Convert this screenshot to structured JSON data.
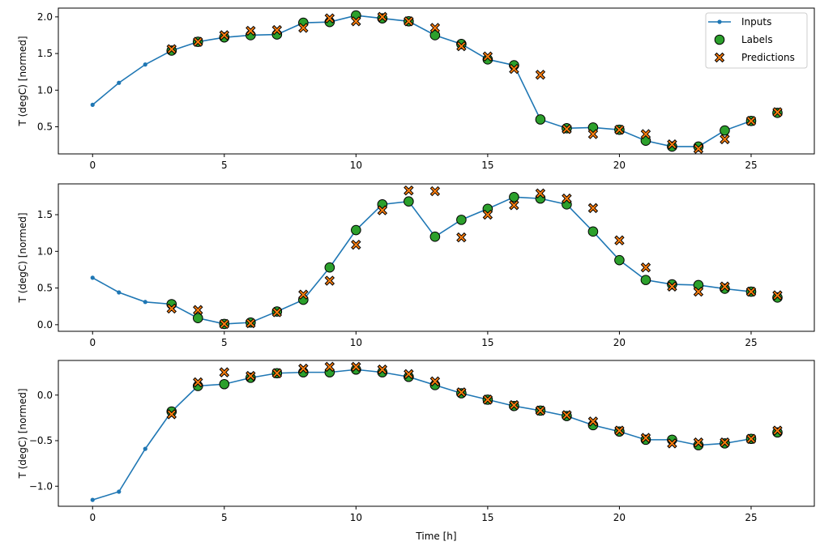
{
  "chart_data": [
    {
      "type": "line",
      "ylabel": "T (degC) [normed]",
      "xlabel": "",
      "xlim": [
        -1.3,
        27.4
      ],
      "ylim": [
        0.13,
        2.12
      ],
      "yticks": [
        0.5,
        1.0,
        1.5,
        2.0
      ],
      "xticks": [
        0,
        5,
        10,
        15,
        20,
        25
      ],
      "legend": {
        "placement": "top-right",
        "entries": [
          "Inputs",
          "Labels",
          "Predictions"
        ]
      },
      "inputs": {
        "x": [
          0,
          1,
          2,
          3,
          4,
          5,
          6,
          7,
          8,
          9,
          10,
          11,
          12,
          13,
          14,
          15,
          16,
          17,
          18,
          19,
          20,
          21,
          22,
          23,
          24,
          25
        ],
        "y": [
          0.8,
          1.1,
          1.35,
          1.54,
          1.66,
          1.72,
          1.75,
          1.76,
          1.92,
          1.93,
          2.02,
          1.98,
          1.94,
          1.75,
          1.63,
          1.42,
          1.34,
          0.6,
          0.48,
          0.49,
          0.46,
          0.31,
          0.23,
          0.23,
          0.45,
          0.58
        ]
      },
      "labels": {
        "x": [
          3,
          4,
          5,
          6,
          7,
          8,
          9,
          10,
          11,
          12,
          13,
          14,
          15,
          16,
          17,
          18,
          19,
          20,
          21,
          22,
          23,
          24,
          25,
          26
        ],
        "y": [
          1.54,
          1.66,
          1.72,
          1.75,
          1.76,
          1.92,
          1.93,
          2.02,
          1.98,
          1.94,
          1.75,
          1.63,
          1.42,
          1.34,
          0.6,
          0.48,
          0.49,
          0.46,
          0.31,
          0.23,
          0.23,
          0.45,
          0.58,
          0.69
        ]
      },
      "predictions": {
        "x": [
          3,
          4,
          5,
          6,
          7,
          8,
          9,
          10,
          11,
          12,
          13,
          14,
          15,
          16,
          17,
          18,
          19,
          20,
          21,
          22,
          23,
          24,
          25,
          26
        ],
        "y": [
          1.56,
          1.66,
          1.75,
          1.81,
          1.82,
          1.85,
          1.98,
          1.94,
          2.0,
          1.94,
          1.85,
          1.6,
          1.46,
          1.29,
          1.21,
          0.47,
          0.4,
          0.46,
          0.4,
          0.26,
          0.2,
          0.33,
          0.58,
          0.7
        ]
      }
    },
    {
      "type": "line",
      "ylabel": "T (degC) [normed]",
      "xlabel": "",
      "xlim": [
        -1.3,
        27.4
      ],
      "ylim": [
        -0.09,
        1.92
      ],
      "yticks": [
        0.0,
        0.5,
        1.0,
        1.5
      ],
      "xticks": [
        0,
        5,
        10,
        15,
        20,
        25
      ],
      "inputs": {
        "x": [
          0,
          1,
          2,
          3,
          4,
          5,
          6,
          7,
          8,
          9,
          10,
          11,
          12,
          13,
          14,
          15,
          16,
          17,
          18,
          19,
          20,
          21,
          22,
          23,
          24,
          25
        ],
        "y": [
          0.64,
          0.44,
          0.31,
          0.28,
          0.09,
          0.01,
          0.03,
          0.18,
          0.34,
          0.78,
          1.29,
          1.64,
          1.68,
          1.2,
          1.43,
          1.58,
          1.74,
          1.72,
          1.64,
          1.27,
          0.88,
          0.61,
          0.55,
          0.54,
          0.49,
          0.45
        ]
      },
      "labels": {
        "x": [
          3,
          4,
          5,
          6,
          7,
          8,
          9,
          10,
          11,
          12,
          13,
          14,
          15,
          16,
          17,
          18,
          19,
          20,
          21,
          22,
          23,
          24,
          25,
          26
        ],
        "y": [
          0.28,
          0.09,
          0.01,
          0.03,
          0.18,
          0.34,
          0.78,
          1.29,
          1.64,
          1.68,
          1.2,
          1.43,
          1.58,
          1.74,
          1.72,
          1.64,
          1.27,
          0.88,
          0.61,
          0.55,
          0.54,
          0.49,
          0.45,
          0.37
        ]
      },
      "predictions": {
        "x": [
          3,
          4,
          5,
          6,
          7,
          8,
          9,
          10,
          11,
          12,
          13,
          14,
          15,
          16,
          17,
          18,
          19,
          20,
          21,
          22,
          23,
          24,
          25,
          26
        ],
        "y": [
          0.22,
          0.2,
          0.01,
          0.02,
          0.17,
          0.41,
          0.6,
          1.09,
          1.56,
          1.83,
          1.82,
          1.19,
          1.5,
          1.63,
          1.79,
          1.72,
          1.59,
          1.15,
          0.78,
          0.52,
          0.45,
          0.52,
          0.45,
          0.4
        ]
      }
    },
    {
      "type": "line",
      "ylabel": "T (degC) [normed]",
      "xlabel": "Time [h]",
      "xlim": [
        -1.3,
        27.4
      ],
      "ylim": [
        -1.22,
        0.38
      ],
      "yticks": [
        -1.0,
        -0.5,
        0.0
      ],
      "xticks": [
        0,
        5,
        10,
        15,
        20,
        25
      ],
      "inputs": {
        "x": [
          0,
          1,
          2,
          3,
          4,
          5,
          6,
          7,
          8,
          9,
          10,
          11,
          12,
          13,
          14,
          15,
          16,
          17,
          18,
          19,
          20,
          21,
          22,
          23,
          24,
          25
        ],
        "y": [
          -1.15,
          -1.06,
          -0.59,
          -0.18,
          0.1,
          0.12,
          0.19,
          0.24,
          0.25,
          0.25,
          0.28,
          0.25,
          0.2,
          0.11,
          0.02,
          -0.05,
          -0.12,
          -0.17,
          -0.23,
          -0.33,
          -0.4,
          -0.49,
          -0.49,
          -0.55,
          -0.53,
          -0.48
        ]
      },
      "labels": {
        "x": [
          3,
          4,
          5,
          6,
          7,
          8,
          9,
          10,
          11,
          12,
          13,
          14,
          15,
          16,
          17,
          18,
          19,
          20,
          21,
          22,
          23,
          24,
          25,
          26
        ],
        "y": [
          -0.18,
          0.1,
          0.12,
          0.19,
          0.24,
          0.25,
          0.25,
          0.28,
          0.25,
          0.2,
          0.11,
          0.02,
          -0.05,
          -0.12,
          -0.17,
          -0.23,
          -0.33,
          -0.4,
          -0.49,
          -0.49,
          -0.55,
          -0.53,
          -0.48,
          -0.41
        ]
      },
      "predictions": {
        "x": [
          3,
          4,
          5,
          6,
          7,
          8,
          9,
          10,
          11,
          12,
          13,
          14,
          15,
          16,
          17,
          18,
          19,
          20,
          21,
          22,
          23,
          24,
          25,
          26
        ],
        "y": [
          -0.21,
          0.14,
          0.25,
          0.21,
          0.24,
          0.29,
          0.31,
          0.31,
          0.28,
          0.23,
          0.15,
          0.03,
          -0.05,
          -0.11,
          -0.17,
          -0.22,
          -0.29,
          -0.39,
          -0.47,
          -0.53,
          -0.52,
          -0.52,
          -0.48,
          -0.39
        ]
      }
    }
  ],
  "colors": {
    "inputs": "#1f77b4",
    "labels": "#2ca02c",
    "predictions": "#ff7f0e"
  }
}
